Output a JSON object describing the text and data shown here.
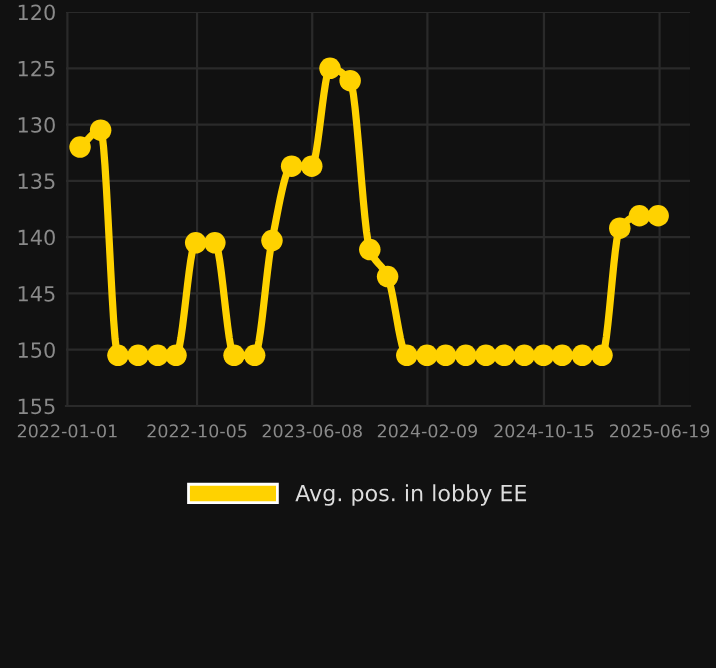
{
  "chart_data": {
    "type": "line",
    "x": [
      "2022-01-28",
      "2022-03-13",
      "2022-04-19",
      "2022-06-01",
      "2022-07-13",
      "2022-08-21",
      "2022-10-02",
      "2022-11-12",
      "2022-12-23",
      "2023-02-05",
      "2023-03-14",
      "2023-04-25",
      "2023-06-07",
      "2023-07-16",
      "2023-08-28",
      "2023-10-09",
      "2023-11-16",
      "2023-12-27",
      "2024-02-08",
      "2024-03-19",
      "2024-05-01",
      "2024-06-13",
      "2024-07-22",
      "2024-09-03",
      "2024-10-14",
      "2024-11-23",
      "2025-01-05",
      "2025-02-16",
      "2025-03-26",
      "2025-05-07",
      "2025-06-16"
    ],
    "series": [
      {
        "name": "Avg. pos. in lobby EE",
        "color": "#ffd200",
        "values": [
          132,
          130.5,
          150.5,
          150.5,
          150.5,
          150.5,
          140.5,
          140.5,
          150.5,
          150.5,
          140.3,
          133.7,
          133.7,
          125,
          126.1,
          141.1,
          143.5,
          150.5,
          150.5,
          150.5,
          150.5,
          150.5,
          150.5,
          150.5,
          150.5,
          150.5,
          150.5,
          150.5,
          139.2,
          138.1,
          138.1
        ]
      }
    ],
    "ylim": [
      155,
      120
    ],
    "yticks": [
      120,
      125,
      130,
      135,
      140,
      145,
      150,
      155
    ],
    "xlim": [
      "2021-12-29",
      "2025-08-23"
    ],
    "xticks": [
      {
        "value": "2022-01-01",
        "label": "2022-01-01"
      },
      {
        "value": "2022-10-05",
        "label": "2022-10-05"
      },
      {
        "value": "2023-06-08",
        "label": "2023-06-08"
      },
      {
        "value": "2024-02-09",
        "label": "2024-02-09"
      },
      {
        "value": "2024-10-15",
        "label": "2024-10-15"
      },
      {
        "value": "2025-06-19",
        "label": "2025-06-19"
      }
    ],
    "grid": true,
    "legend": "bottom",
    "marker": "circle",
    "line_style": "solid"
  }
}
